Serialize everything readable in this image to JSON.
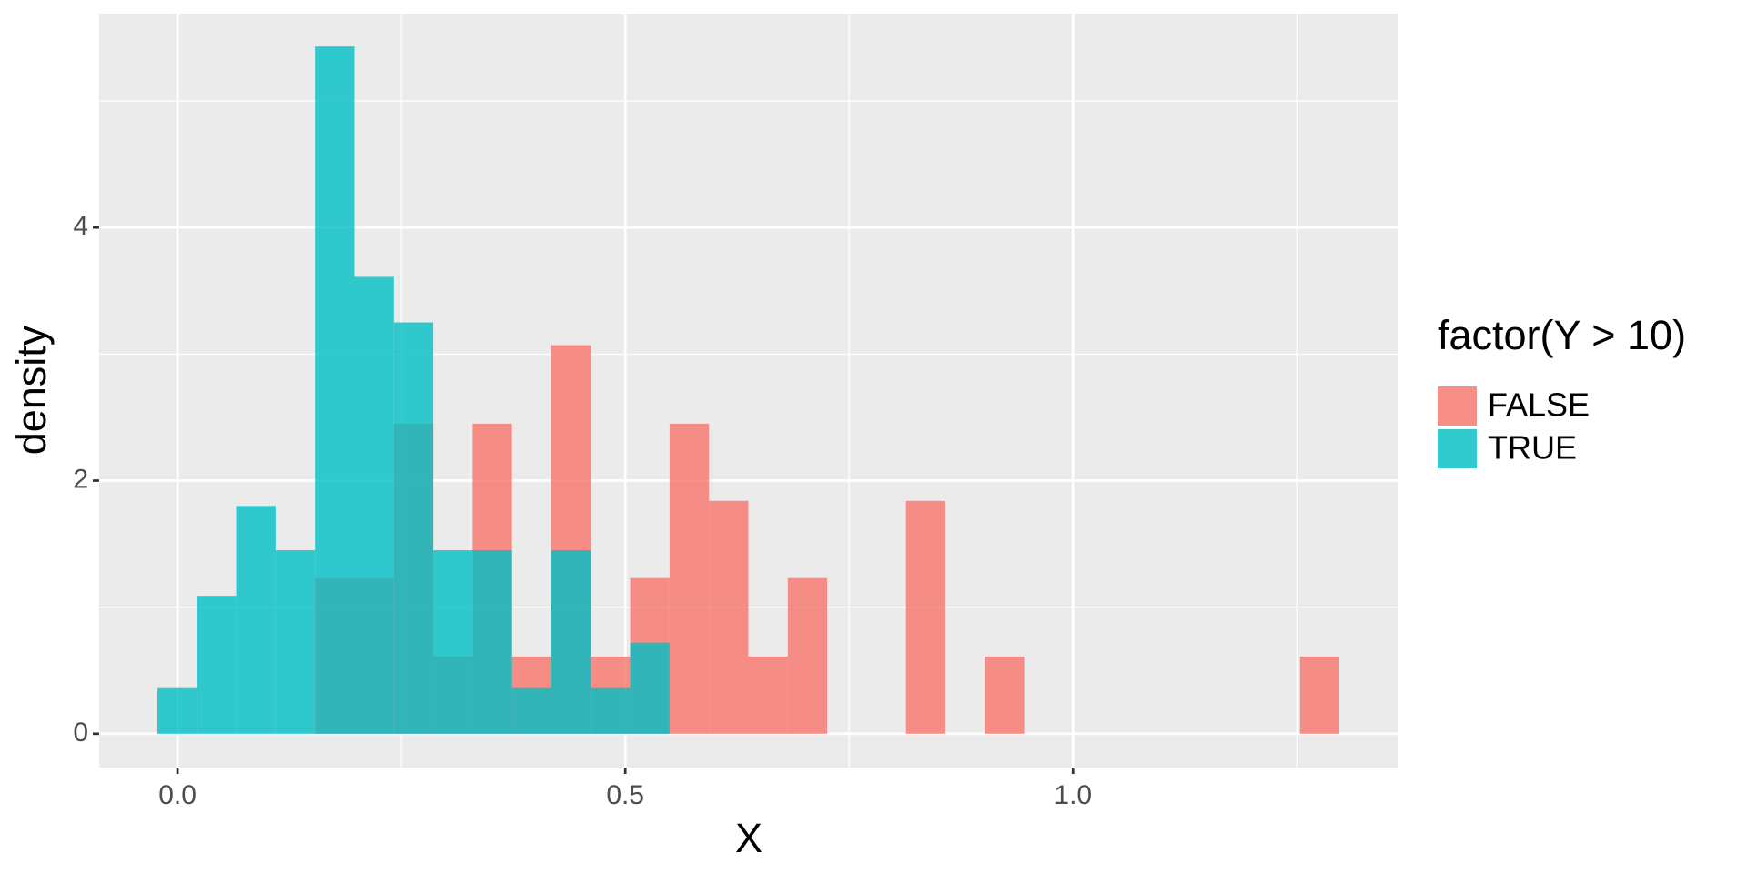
{
  "chart_data": {
    "type": "histogram",
    "x_label": "X",
    "y_label": "density",
    "legend_title": "factor(Y > 10)",
    "legend_position": "right",
    "grid": true,
    "panel_color": "#EBEBEB",
    "opacity": 0.8,
    "bins": [
      -0.0225,
      0.0215,
      0.0655,
      0.1095,
      0.1535,
      0.1975,
      0.2415,
      0.2855,
      0.3295,
      0.3735,
      0.4175,
      0.4615,
      0.5055,
      0.5495,
      0.5935,
      0.6375,
      0.6815,
      0.7255,
      0.7695,
      0.8135,
      0.8575,
      0.9015,
      0.9455,
      0.9895,
      1.0335,
      1.0775,
      1.1215,
      1.1655,
      1.2095,
      1.2535,
      1.2975
    ],
    "series": [
      {
        "name": "FALSE",
        "color": "#F8766D",
        "values": [
          0,
          0,
          0,
          0,
          1.23,
          1.23,
          2.45,
          0.61,
          2.45,
          0.61,
          3.07,
          0.61,
          1.23,
          2.45,
          1.84,
          0.61,
          1.23,
          0,
          0,
          1.84,
          0,
          0.61,
          0,
          0,
          0,
          0,
          0,
          0,
          0,
          0.61
        ]
      },
      {
        "name": "TRUE",
        "color": "#00BFC4",
        "values": [
          0.36,
          1.09,
          1.8,
          1.45,
          5.43,
          3.61,
          3.25,
          1.45,
          1.45,
          0.36,
          1.45,
          0.36,
          0.72,
          0,
          0,
          0,
          0,
          0,
          0,
          0,
          0,
          0,
          0,
          0,
          0,
          0,
          0,
          0,
          0,
          0
        ]
      }
    ],
    "xlim": [
      -0.0875,
      1.3625
    ],
    "ylim": [
      -0.267,
      5.69
    ],
    "xticks": [
      {
        "value": 0,
        "label": "0.0"
      },
      {
        "value": 0.5,
        "label": "0.5"
      },
      {
        "value": 1,
        "label": "1.0"
      }
    ],
    "yticks": [
      0,
      2,
      4
    ],
    "xminor": [
      0.25,
      0.75,
      1.25
    ],
    "yminor": [
      1,
      3,
      5
    ]
  }
}
